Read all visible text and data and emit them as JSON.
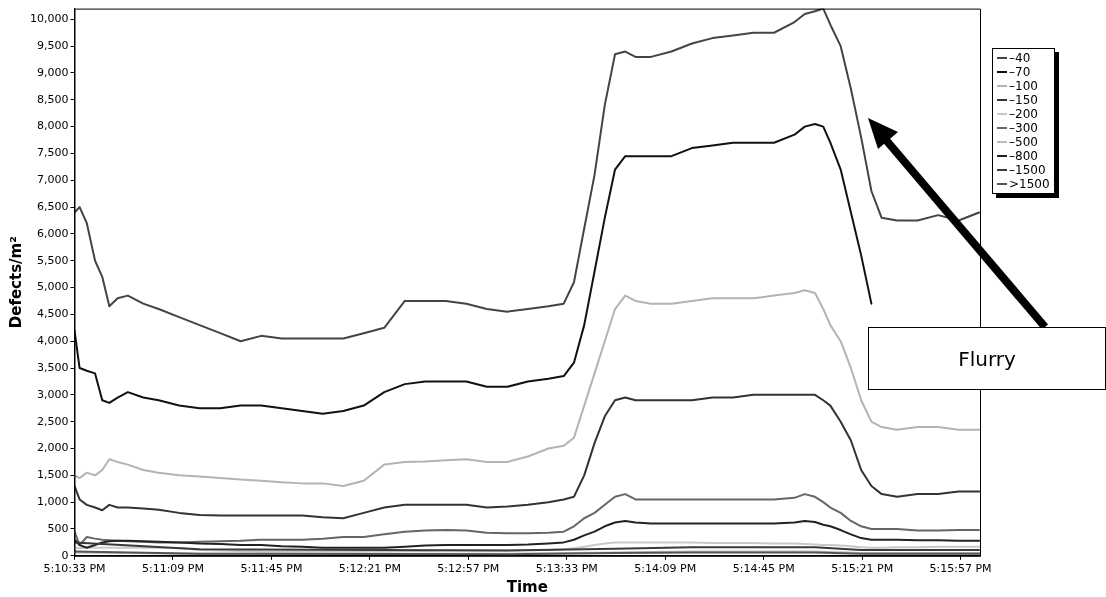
{
  "chart_data": {
    "type": "line",
    "xlabel": "Time",
    "ylabel": "Defects/m²",
    "legend": "top right",
    "grid": false,
    "marker": "none",
    "line_style": "solid",
    "xlim": [
      17.17583,
      17.2678
    ],
    "ylim": [
      0,
      10200
    ],
    "xticks": [
      {
        "value": 17.17583,
        "label": "5:10:33 PM"
      },
      {
        "value": 17.18583,
        "label": "5:11:09 PM"
      },
      {
        "value": 17.19583,
        "label": "5:11:45 PM"
      },
      {
        "value": 17.20583,
        "label": "5:12:21 PM"
      },
      {
        "value": 17.21583,
        "label": "5:12:57 PM"
      },
      {
        "value": 17.22583,
        "label": "5:13:33 PM"
      },
      {
        "value": 17.23583,
        "label": "5:14:09 PM"
      },
      {
        "value": 17.24583,
        "label": "5:14:45 PM"
      },
      {
        "value": 17.25583,
        "label": "5:15:21 PM"
      },
      {
        "value": 17.26583,
        "label": "5:15:57 PM"
      }
    ],
    "yticks": [
      0,
      500,
      {
        "value": 1000,
        "label": "1,000"
      },
      {
        "value": 1500,
        "label": "1,500"
      },
      {
        "value": 2000,
        "label": "2,000"
      },
      {
        "value": 2500,
        "label": "2,500"
      },
      {
        "value": 3000,
        "label": "3,000"
      },
      {
        "value": 3500,
        "label": "3,500"
      },
      {
        "value": 4000,
        "label": "4,000"
      },
      {
        "value": 4500,
        "label": "4,500"
      },
      {
        "value": 5000,
        "label": "5,000"
      },
      {
        "value": 5500,
        "label": "5,500"
      },
      {
        "value": 6000,
        "label": "6,000"
      },
      {
        "value": 6500,
        "label": "6,500"
      },
      {
        "value": 7000,
        "label": "7,000"
      },
      {
        "value": 7500,
        "label": "7,500"
      },
      {
        "value": 8000,
        "label": "8,000"
      },
      {
        "value": 8500,
        "label": "8,500"
      },
      {
        "value": 9000,
        "label": "9,000"
      },
      {
        "value": 9500,
        "label": "9,500"
      },
      {
        "value": 10000,
        "label": "10,000"
      }
    ],
    "x": [
      17.17583,
      17.17635,
      17.17708,
      17.17792,
      17.17865,
      17.17937,
      17.18021,
      17.18125,
      17.18281,
      17.18438,
      17.18646,
      17.18854,
      17.19063,
      17.19271,
      17.19479,
      17.19688,
      17.19896,
      17.20104,
      17.20313,
      17.20521,
      17.20729,
      17.20938,
      17.21146,
      17.21354,
      17.21563,
      17.21771,
      17.21979,
      17.22188,
      17.22396,
      17.22552,
      17.22656,
      17.2276,
      17.22865,
      17.22969,
      17.23073,
      17.23177,
      17.23281,
      17.23438,
      17.23646,
      17.23854,
      17.24063,
      17.24271,
      17.24479,
      17.24688,
      17.24896,
      17.25,
      17.25104,
      17.25188,
      17.2526,
      17.25365,
      17.25469,
      17.25573,
      17.25677,
      17.25781,
      17.25938,
      17.26146,
      17.26354,
      17.26563,
      17.26771
    ],
    "annotations": [
      "Flurry"
    ],
    "series": [
      {
        "name": "–40",
        "color": "#444444",
        "values": [
          6400,
          6500,
          6200,
          5500,
          5200,
          4650,
          4800,
          4850,
          4700,
          4600,
          4450,
          4300,
          4150,
          4000,
          4100,
          4050,
          4050,
          4050,
          4050,
          4150,
          4250,
          4750,
          4750,
          4750,
          4700,
          4600,
          4550,
          4600,
          4650,
          4700,
          5100,
          6100,
          7100,
          8400,
          9350,
          9400,
          9300,
          9300,
          9400,
          9550,
          9650,
          9700,
          9750,
          9750,
          9950,
          10100,
          10150,
          10200,
          9900,
          9500,
          8700,
          7800,
          6800,
          6300,
          6250,
          6250,
          6350,
          6250,
          6400
        ]
      },
      {
        "name": "–70",
        "color": "#111111",
        "values": [
          4200,
          3500,
          3450,
          3400,
          2900,
          2850,
          2950,
          3050,
          2950,
          2900,
          2800,
          2750,
          2750,
          2800,
          2800,
          2750,
          2700,
          2650,
          2700,
          2800,
          3050,
          3200,
          3250,
          3250,
          3250,
          3150,
          3150,
          3250,
          3300,
          3350,
          3600,
          4300,
          5300,
          6300,
          7200,
          7450,
          7450,
          7450,
          7450,
          7600,
          7650,
          7700,
          7700,
          7700,
          7850,
          8000,
          8050,
          8000,
          7700,
          7200,
          6400,
          5600,
          4700,
          null,
          null,
          null,
          null,
          null,
          null
        ]
      },
      {
        "name": "–100",
        "color": "#b3b3b3",
        "values": [
          1500,
          1450,
          1550,
          1500,
          1600,
          1800,
          1750,
          1700,
          1600,
          1550,
          1500,
          1480,
          1450,
          1420,
          1400,
          1370,
          1350,
          1350,
          1300,
          1400,
          1700,
          1750,
          1760,
          1780,
          1800,
          1750,
          1750,
          1850,
          2000,
          2050,
          2200,
          2800,
          3400,
          4000,
          4600,
          4850,
          4750,
          4700,
          4700,
          4750,
          4800,
          4800,
          4800,
          4850,
          4900,
          4950,
          4900,
          4600,
          4300,
          4000,
          3500,
          2900,
          2500,
          2400,
          2350,
          2400,
          2400,
          2350,
          2350
        ]
      },
      {
        "name": "–150",
        "color": "#333333",
        "values": [
          1300,
          1050,
          950,
          900,
          850,
          950,
          900,
          900,
          880,
          860,
          800,
          760,
          750,
          750,
          750,
          750,
          750,
          720,
          700,
          800,
          900,
          950,
          950,
          950,
          950,
          900,
          920,
          950,
          1000,
          1050,
          1100,
          1500,
          2100,
          2600,
          2900,
          2950,
          2900,
          2900,
          2900,
          2900,
          2950,
          2950,
          3000,
          3000,
          3000,
          3000,
          3000,
          2900,
          2800,
          2500,
          2150,
          1600,
          1300,
          1150,
          1100,
          1150,
          1150,
          1200,
          1200
        ]
      },
      {
        "name": "–200",
        "color": "#c8c8c8",
        "values": [
          150,
          140,
          150,
          150,
          150,
          150,
          150,
          150,
          150,
          150,
          140,
          110,
          100,
          90,
          80,
          80,
          80,
          80,
          80,
          80,
          80,
          90,
          90,
          100,
          100,
          100,
          100,
          110,
          110,
          120,
          140,
          170,
          200,
          230,
          250,
          250,
          250,
          250,
          250,
          250,
          240,
          240,
          240,
          230,
          230,
          220,
          210,
          200,
          200,
          190,
          180,
          160,
          150,
          150,
          160,
          160,
          170,
          170,
          170
        ]
      },
      {
        "name": "–300",
        "color": "#666666",
        "values": [
          450,
          200,
          350,
          320,
          300,
          290,
          280,
          270,
          260,
          250,
          250,
          260,
          270,
          280,
          300,
          300,
          300,
          320,
          350,
          350,
          400,
          450,
          470,
          480,
          470,
          430,
          420,
          420,
          430,
          450,
          550,
          700,
          800,
          950,
          1100,
          1150,
          1050,
          1050,
          1050,
          1050,
          1050,
          1050,
          1050,
          1050,
          1080,
          1150,
          1100,
          1000,
          900,
          800,
          650,
          550,
          500,
          500,
          500,
          470,
          470,
          480,
          480
        ]
      },
      {
        "name": "–500",
        "color": "#bdbdbd",
        "x": [
          17.17583,
          17.18854,
          17.21979,
          17.23073,
          17.23854,
          17.25104,
          17.25573,
          17.26771
        ],
        "values": [
          60,
          40,
          40,
          60,
          80,
          80,
          50,
          50
        ]
      },
      {
        "name": "–800",
        "color": "#222222",
        "values": [
          300,
          200,
          150,
          200,
          250,
          270,
          280,
          280,
          270,
          260,
          250,
          230,
          220,
          200,
          200,
          180,
          170,
          150,
          150,
          150,
          150,
          170,
          190,
          200,
          200,
          200,
          200,
          210,
          230,
          250,
          300,
          380,
          450,
          550,
          620,
          650,
          620,
          600,
          600,
          600,
          600,
          600,
          600,
          600,
          620,
          650,
          630,
          580,
          550,
          480,
          400,
          330,
          300,
          300,
          300,
          290,
          290,
          280,
          280
        ]
      },
      {
        "name": "–1500",
        "color": "#3a3a3a",
        "x": [
          17.17583,
          17.18854,
          17.21979,
          17.23073,
          17.23854,
          17.25104,
          17.25573,
          17.26771
        ],
        "values": [
          250,
          120,
          100,
          130,
          160,
          160,
          110,
          110
        ]
      },
      {
        "name": ">1500",
        "color": "#555555",
        "x": [
          17.17583,
          17.18854,
          17.21979,
          17.23073,
          17.23854,
          17.25104,
          17.25573,
          17.26771
        ],
        "values": [
          80,
          40,
          30,
          50,
          60,
          60,
          40,
          40
        ]
      }
    ]
  }
}
